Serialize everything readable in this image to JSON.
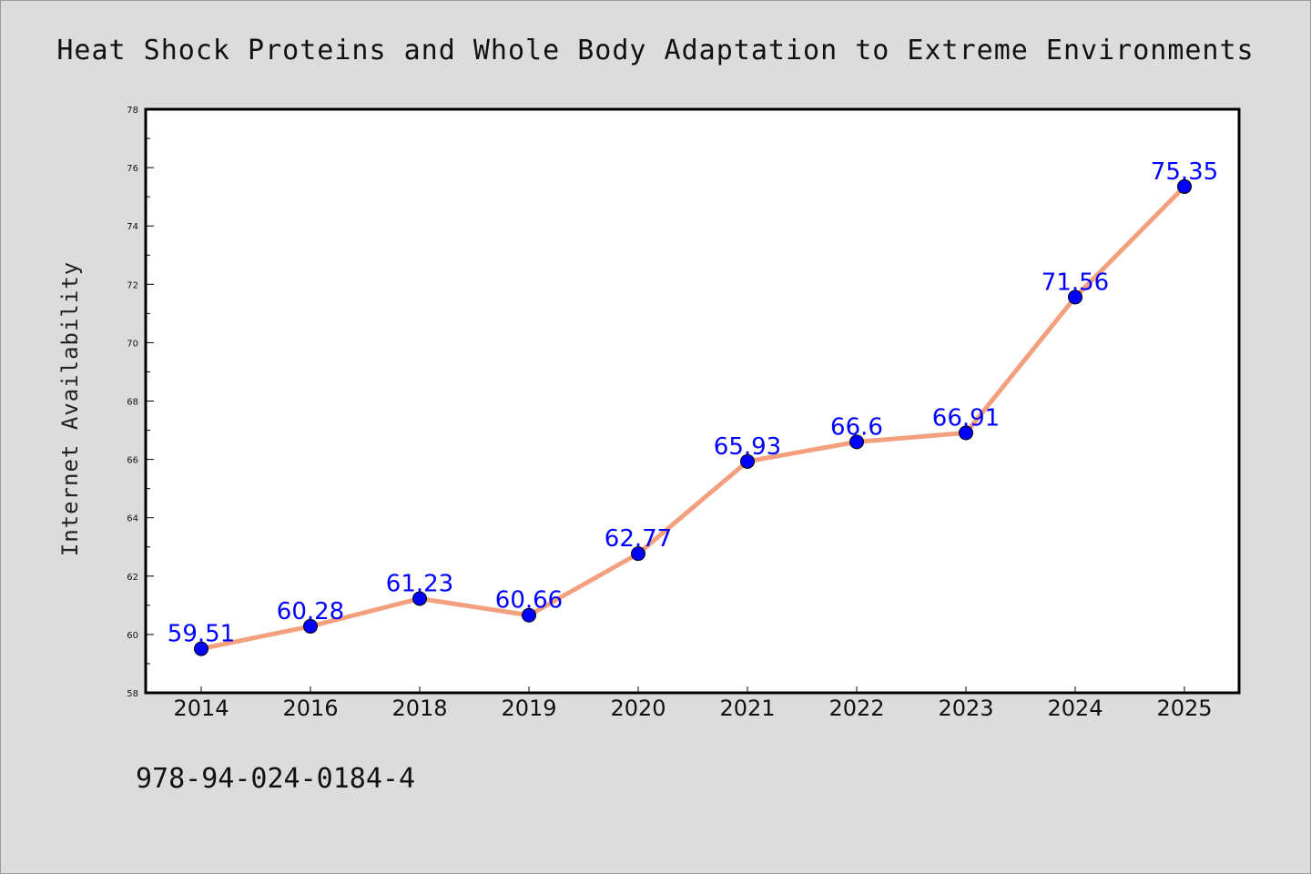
{
  "chart_data": {
    "type": "line",
    "title": "Heat Shock Proteins and Whole Body Adaptation to Extreme Environments",
    "xlabel": "",
    "ylabel": "Internet Availability",
    "categories": [
      "2014",
      "2016",
      "2018",
      "2019",
      "2020",
      "2021",
      "2022",
      "2023",
      "2024",
      "2025"
    ],
    "series": [
      {
        "values": [
          59.51,
          60.28,
          61.23,
          60.66,
          62.77,
          65.93,
          66.6,
          66.91,
          71.56,
          75.35
        ],
        "data_labels": [
          "59.51",
          "60.28",
          "61.23",
          "60.66",
          "62.77",
          "65.93",
          "66.6",
          "66.91",
          "71.56",
          "75.35"
        ],
        "line_color": "#f4a07e",
        "marker_color": "#0000ff"
      }
    ],
    "ylim": [
      58,
      78
    ],
    "yticks": [
      58,
      60,
      62,
      64,
      66,
      68,
      70,
      72,
      74,
      76,
      78
    ],
    "grid": false,
    "legend": "none"
  },
  "footer": {
    "isbn": "978-94-024-0184-4"
  },
  "colors": {
    "background": "#dcdcdc",
    "plot_background": "#ffffff",
    "line": "#f4a07e",
    "marker": "#0000ff",
    "data_label": "#0000ff"
  }
}
